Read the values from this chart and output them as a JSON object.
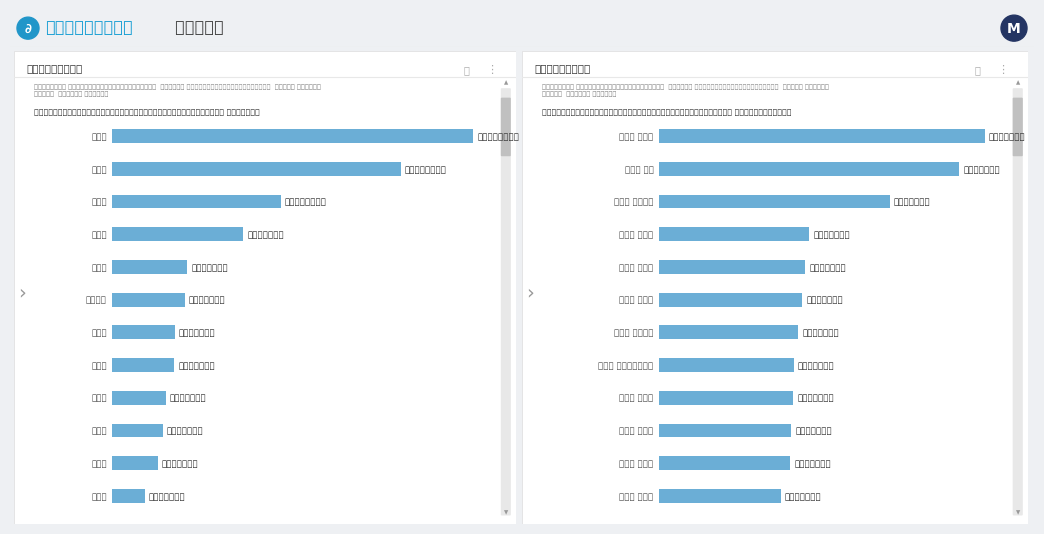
{
  "header_title1": "人流アナリティクス",
  "header_title2": " ツーリズム",
  "header_bg": "#ffffff",
  "header_icon_color": "#1a9fd4",
  "header_text_color1": "#1a9fd4",
  "header_text_color2": "#444444",
  "panel1_title": "都道府県別来訪比率",
  "panel2_title": "市区町村別来訪比率",
  "panel1_subtitle": "[ホームPOI] サンプル_観光スポット09_伊勢神宮(内宮)  [分析期間] 2023/04/01〜2023/04/30  [時間帯] 00:00〜\n24:00  [分析対象] すべての来訪",
  "panel2_subtitle": "[ホームPOI] サンプル_観光スポット09_伊勢神宮(内宮)  [分析期間] 2023/04/01〜2023/04/30  [時間帯] 00:00〜\n24:00  [分析対象] すべての来訪",
  "panel1_chart_title": "「伊勢神宮(内宮)_2023-04-01~2023-04-30」への来訪者の割合 (都道府県別)",
  "panel2_chart_title": "「伊勢神宮(内宮)_2023-04-01~2023-04-30」への来訪者の割合 (市区町村別の上位30)",
  "pref_labels": [
    "愛知県",
    "大阪府",
    "三重県",
    "東京都",
    "兵庫県",
    "神奈川県",
    "岐阜県",
    "静岡県",
    "京都府",
    "埼玉県",
    "奈良県",
    "滋賀県"
  ],
  "pref_values": [
    21.7798,
    17.411,
    10.1685,
    7.9135,
    4.5517,
    4.3982,
    3.794,
    3.7695,
    3.2425,
    3.0783,
    2.7715,
    1.9951
  ],
  "pref_value_labels": [
    "21.7798%",
    "17.4110%",
    "10.1685%",
    "7.9135%",
    "4.5517%",
    "4.3982%",
    "3.7940%",
    "3.7695%",
    "3.2425%",
    "3.0783%",
    "2.7715%",
    "1.9951%"
  ],
  "city_labels": [
    "三重県 伊勢市",
    "三重県 津市",
    "三重県 四日市市",
    "愛知県 豊橋市",
    "三重県 松阪市",
    "愛知県 一宮市",
    "大阪府 東大阪市",
    "愛知県 名古屋市千種区",
    "岐阜県 岐阜市",
    "愛知県 刈谷市",
    "奈良県 奈良市",
    "愛知県 岡崎市"
  ],
  "city_values": [
    2.2944,
    2.1123,
    1.6265,
    1.0577,
    1.031,
    1.0083,
    0.9816,
    0.9492,
    0.9476,
    0.9327,
    0.9254,
    0.8574
  ],
  "city_value_labels": [
    "2.2944%",
    "2.1123%",
    "1.6265%",
    "1.0577%",
    "1.0310%",
    "1.0083%",
    "0.9816%",
    "0.9492%",
    "0.9476%",
    "0.9327%",
    "0.9254%",
    "0.8574%"
  ],
  "bar_color": "#6baed6",
  "bg_color": "#eef0f3",
  "panel_bg": "#ffffff",
  "panel_border": "#dddddd",
  "title_color": "#333333",
  "subtitle_color": "#888888",
  "label_color": "#555555",
  "value_color": "#333333",
  "scrollbar_track": "#e8e8e8",
  "scrollbar_thumb": "#c0c0c0",
  "avatar_bg": "#243563",
  "arrow_color": "#999999",
  "icon_color": "#2196c9"
}
